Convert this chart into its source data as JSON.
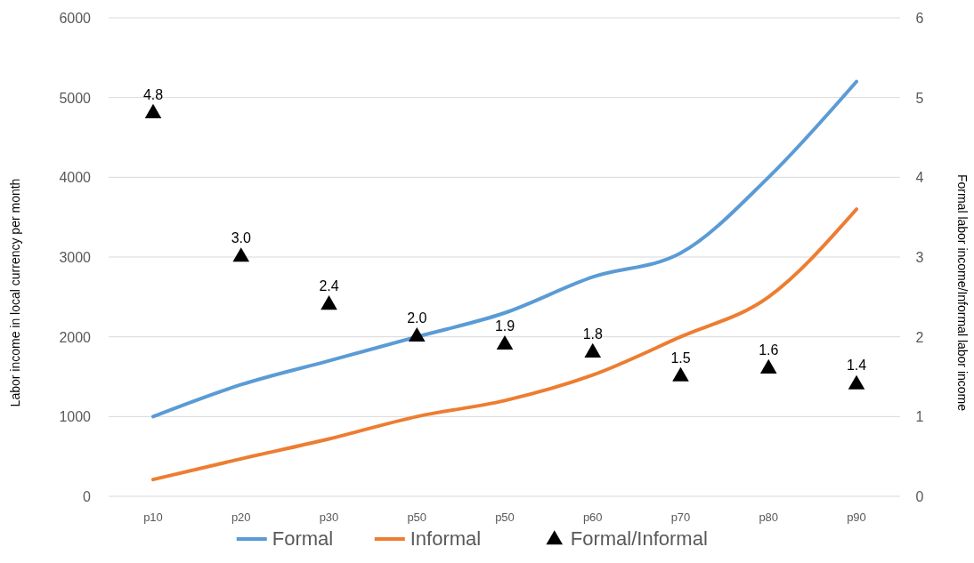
{
  "chart_data": {
    "type": "line",
    "ylabel": "Labor income in local currency per month",
    "y2label": "Formal labor income/Informal labor income",
    "categories": [
      "p10",
      "p20",
      "p30",
      "p50",
      "p50",
      "p60",
      "p70",
      "p80",
      "p90"
    ],
    "series": [
      {
        "name": "Formal",
        "color": "#5b9bd5",
        "values": [
          1000,
          1400,
          1700,
          2000,
          2300,
          2750,
          3050,
          4000,
          5200
        ]
      },
      {
        "name": "Informal",
        "color": "#ed7d31",
        "values": [
          210,
          470,
          720,
          1000,
          1200,
          1520,
          2000,
          2500,
          3600
        ]
      },
      {
        "name": "Formal/Informal",
        "type": "scatter",
        "axis": "y2",
        "marker": "triangle",
        "color": "#000000",
        "values": [
          4.8,
          3.0,
          2.4,
          2.0,
          1.9,
          1.8,
          1.5,
          1.6,
          1.4
        ],
        "value_labels": [
          "4.8",
          "3.0",
          "2.4",
          "2.0",
          "1.9",
          "1.8",
          "1.5",
          "1.6",
          "1.4"
        ]
      }
    ],
    "ylim": [
      0,
      6000
    ],
    "yticks": [
      0,
      1000,
      2000,
      3000,
      4000,
      5000,
      6000
    ],
    "y2lim": [
      0,
      6
    ],
    "y2ticks": [
      0,
      1,
      2,
      3,
      4,
      5,
      6
    ],
    "grid": "y",
    "legend": "bottom",
    "marker": "none",
    "line_style": "solid"
  }
}
